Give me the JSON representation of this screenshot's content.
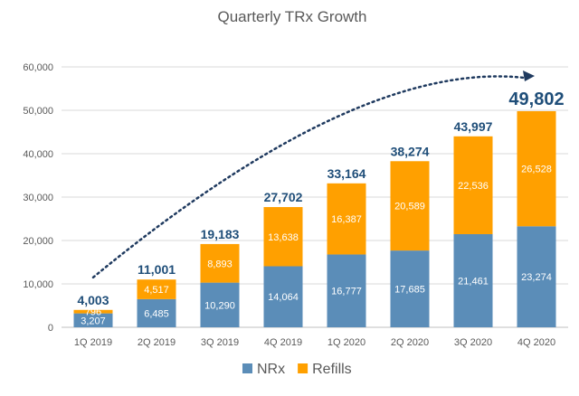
{
  "chart_data": {
    "type": "bar",
    "stacked": true,
    "title": "Quarterly TRx Growth",
    "xlabel": "",
    "ylabel": "",
    "categories": [
      "1Q 2019",
      "2Q 2019",
      "3Q 2019",
      "4Q 2019",
      "1Q  2020",
      "2Q 2020",
      "3Q 2020",
      "4Q 2020"
    ],
    "series": [
      {
        "name": "NRx",
        "color": "#5b8db8",
        "values": [
          3207,
          6485,
          10290,
          14064,
          16777,
          17685,
          21461,
          23274
        ]
      },
      {
        "name": "Refills",
        "color": "#ffa000",
        "values": [
          796,
          4517,
          8893,
          13638,
          16387,
          20589,
          22536,
          26528
        ]
      }
    ],
    "segment_labels": {
      "NRx": [
        "3,207",
        "6,485",
        "10,290",
        "14,064",
        "16,777",
        "17,685",
        "21,461",
        "23,274"
      ],
      "Refills": [
        "796",
        "4,517",
        "8,893",
        "13,638",
        "16,387",
        "20,589",
        "22,536",
        "26,528"
      ]
    },
    "totals": [
      4003,
      11001,
      19183,
      27702,
      33164,
      38274,
      43997,
      49802
    ],
    "total_labels": [
      "4,003",
      "11,001",
      "19,183",
      "27,702",
      "33,164",
      "38,274",
      "43,997",
      "49,802"
    ],
    "ylim": [
      0,
      60000
    ],
    "yticks": [
      0,
      10000,
      20000,
      30000,
      40000,
      50000,
      60000
    ],
    "ytick_labels": [
      "0",
      "10,000",
      "20,000",
      "30,000",
      "40,000",
      "50,000",
      "60,000"
    ],
    "grid": true,
    "legend": {
      "position": "bottom",
      "entries": [
        "NRx",
        "Refills"
      ]
    },
    "trend_arrow": {
      "style": "dotted",
      "color": "#1f3a5f",
      "y_start": 11500,
      "y_end": 57500
    }
  }
}
